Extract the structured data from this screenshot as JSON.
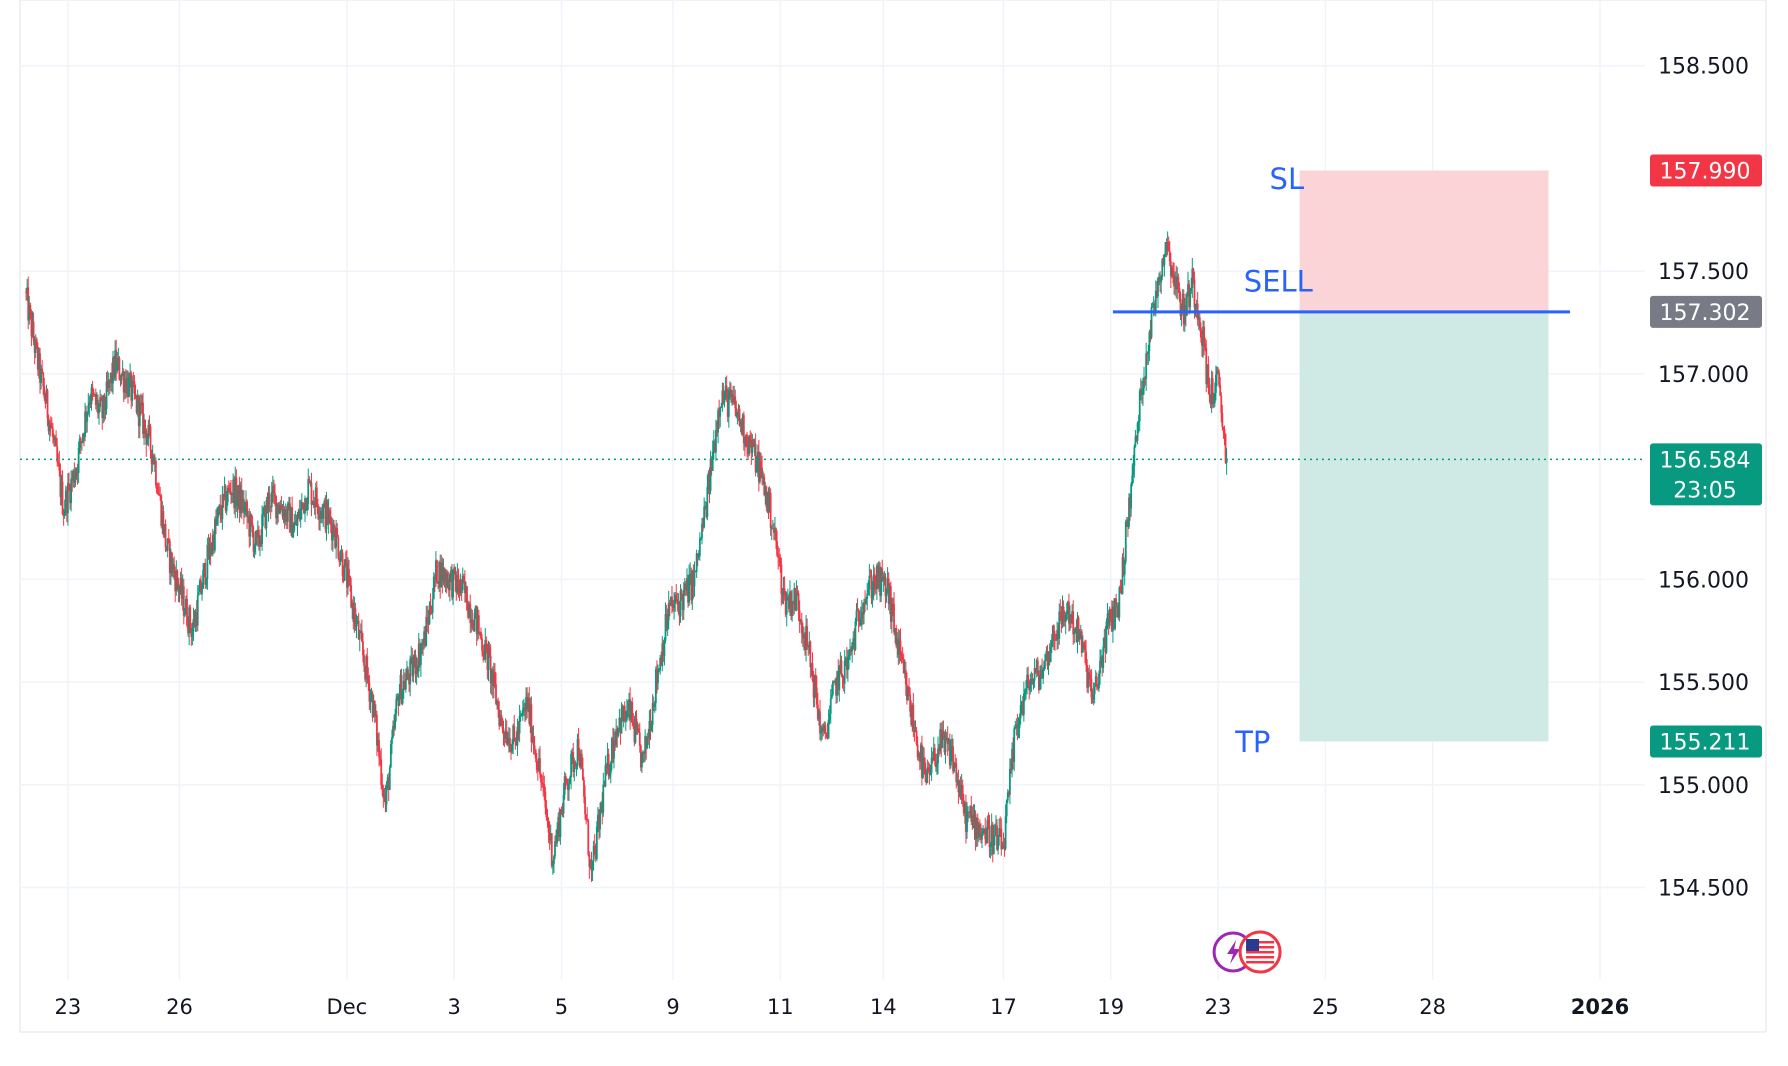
{
  "chart_data": {
    "type": "candlestick",
    "y_axis": {
      "range": [
        154.05,
        158.82
      ],
      "ticks": [
        "158.500",
        "157.500",
        "157.000",
        "156.000",
        "155.500",
        "155.000",
        "154.500"
      ]
    },
    "x_axis": {
      "labels": [
        {
          "text": "23",
          "index": 10
        },
        {
          "text": "26",
          "index": 36
        },
        {
          "text": "Dec",
          "index": 75
        },
        {
          "text": "3",
          "index": 100
        },
        {
          "text": "5",
          "index": 125
        },
        {
          "text": "9",
          "index": 151
        },
        {
          "text": "11",
          "index": 176
        },
        {
          "text": "14",
          "index": 200
        },
        {
          "text": "17",
          "index": 228
        },
        {
          "text": "19",
          "index": 253
        },
        {
          "text": "23",
          "index": 278
        },
        {
          "text": "25",
          "index": 303
        },
        {
          "text": "28",
          "index": 328
        },
        {
          "text": "2026",
          "index": 367
        }
      ],
      "index_range": [
        0,
        367
      ]
    },
    "price_path": [
      [
        0,
        157.4
      ],
      [
        3,
        157.05
      ],
      [
        6,
        156.75
      ],
      [
        9,
        156.35
      ],
      [
        12,
        156.55
      ],
      [
        15,
        156.9
      ],
      [
        18,
        156.8
      ],
      [
        21,
        157.05
      ],
      [
        24,
        156.95
      ],
      [
        27,
        156.8
      ],
      [
        30,
        156.6
      ],
      [
        33,
        156.15
      ],
      [
        36,
        155.95
      ],
      [
        39,
        155.75
      ],
      [
        42,
        156.05
      ],
      [
        45,
        156.3
      ],
      [
        48,
        156.45
      ],
      [
        51,
        156.35
      ],
      [
        54,
        156.15
      ],
      [
        57,
        156.4
      ],
      [
        60,
        156.35
      ],
      [
        63,
        156.25
      ],
      [
        66,
        156.45
      ],
      [
        69,
        156.35
      ],
      [
        72,
        156.25
      ],
      [
        75,
        156.0
      ],
      [
        78,
        155.7
      ],
      [
        81,
        155.4
      ],
      [
        84,
        154.9
      ],
      [
        87,
        155.45
      ],
      [
        90,
        155.55
      ],
      [
        93,
        155.7
      ],
      [
        96,
        156.05
      ],
      [
        99,
        156.0
      ],
      [
        102,
        155.95
      ],
      [
        105,
        155.8
      ],
      [
        108,
        155.6
      ],
      [
        111,
        155.3
      ],
      [
        114,
        155.2
      ],
      [
        117,
        155.4
      ],
      [
        120,
        155.05
      ],
      [
        123,
        154.65
      ],
      [
        126,
        155.0
      ],
      [
        129,
        155.2
      ],
      [
        132,
        154.55
      ],
      [
        135,
        155.0
      ],
      [
        138,
        155.3
      ],
      [
        141,
        155.35
      ],
      [
        144,
        155.1
      ],
      [
        147,
        155.5
      ],
      [
        150,
        155.85
      ],
      [
        153,
        155.9
      ],
      [
        156,
        156.0
      ],
      [
        159,
        156.4
      ],
      [
        162,
        156.9
      ],
      [
        165,
        156.85
      ],
      [
        168,
        156.7
      ],
      [
        171,
        156.55
      ],
      [
        174,
        156.3
      ],
      [
        177,
        155.9
      ],
      [
        180,
        155.9
      ],
      [
        183,
        155.6
      ],
      [
        186,
        155.2
      ],
      [
        189,
        155.5
      ],
      [
        192,
        155.6
      ],
      [
        195,
        155.9
      ],
      [
        198,
        156.0
      ],
      [
        201,
        155.95
      ],
      [
        204,
        155.6
      ],
      [
        207,
        155.3
      ],
      [
        210,
        155.0
      ],
      [
        213,
        155.2
      ],
      [
        216,
        155.15
      ],
      [
        219,
        154.85
      ],
      [
        222,
        154.8
      ],
      [
        225,
        154.75
      ],
      [
        228,
        154.7
      ],
      [
        231,
        155.3
      ],
      [
        234,
        155.5
      ],
      [
        237,
        155.55
      ],
      [
        240,
        155.75
      ],
      [
        243,
        155.85
      ],
      [
        246,
        155.7
      ],
      [
        249,
        155.4
      ],
      [
        252,
        155.75
      ],
      [
        255,
        155.9
      ],
      [
        258,
        156.5
      ],
      [
        260,
        156.9
      ],
      [
        262,
        157.2
      ],
      [
        264,
        157.45
      ],
      [
        266,
        157.65
      ],
      [
        268,
        157.45
      ],
      [
        270,
        157.3
      ],
      [
        272,
        157.45
      ],
      [
        274,
        157.25
      ],
      [
        276,
        156.9
      ],
      [
        278,
        156.95
      ],
      [
        280,
        156.584
      ]
    ],
    "current_price": {
      "label": "156.584",
      "countdown": "23:05",
      "value": 156.584
    },
    "entry_line": {
      "label": "157.302",
      "value": 157.302,
      "index_from": 253.5,
      "index_to": 360
    },
    "position": {
      "direction": "short",
      "entry": 157.302,
      "stop_loss": {
        "label": "157.990",
        "value": 157.99
      },
      "take_profit": {
        "label": "155.211",
        "value": 155.211
      },
      "index_from": 297,
      "index_to": 355
    },
    "annotations": [
      {
        "text": "SL",
        "index": 290,
        "price": 157.9
      },
      {
        "text": "SELL",
        "index": 284,
        "price": 157.4
      },
      {
        "text": "TP",
        "index": 282,
        "price": 155.16
      }
    ],
    "colors": {
      "up": "#089981",
      "down": "#f23645",
      "loss_zone": "#fad4d6",
      "profit_zone": "#cfeae5",
      "entry_line": "#2962ff",
      "grid": "#f0f3fa",
      "sl_badge": "#f23645",
      "entry_badge": "#787b86",
      "price_badge": "#089981"
    },
    "grid": true,
    "event_icons": [
      "lightning-icon",
      "us-flag-icon"
    ]
  }
}
